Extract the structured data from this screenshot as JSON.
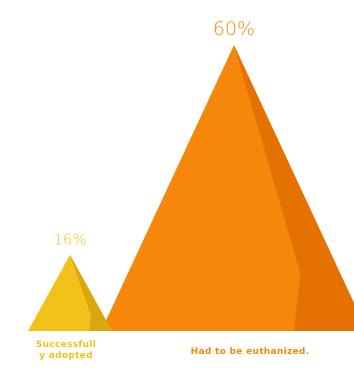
{
  "chart_data": {
    "type": "bar",
    "categories": [
      "Successfully adopted",
      "Had to be euthanized."
    ],
    "category_labels": [
      "Successfull\ny adopted",
      "Had to be euthanized."
    ],
    "values": [
      16,
      60
    ],
    "value_labels": [
      "16%",
      "60%"
    ],
    "unit": "%",
    "ylim": [
      0,
      60
    ],
    "grid": false,
    "legend": "none"
  },
  "colors": {
    "adopted_main": "#F2C21B",
    "adopted_shade": "#D9A80F",
    "euthanized_main": "#F7870A",
    "euthanized_shade": "#E57100",
    "adopted_text": "#F2C21B",
    "euthanized_text": "#F08A0C"
  }
}
